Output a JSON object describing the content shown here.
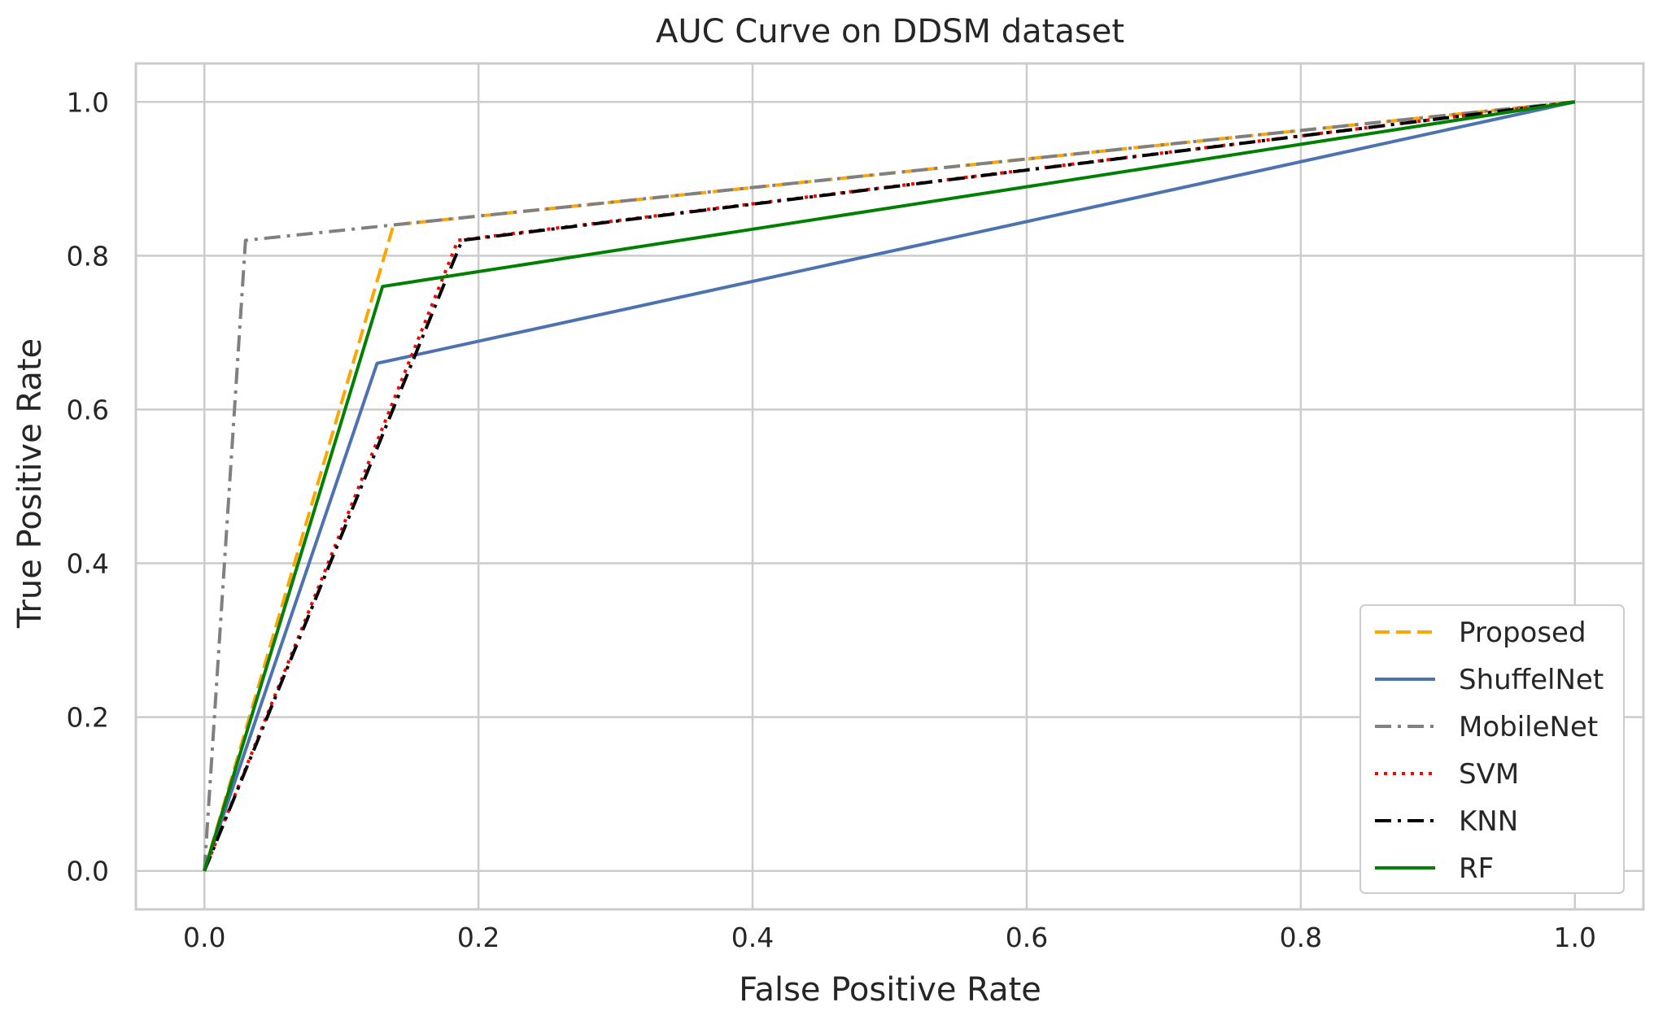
{
  "chart_data": {
    "type": "line",
    "title": "AUC Curve on DDSM dataset",
    "xlabel": "False Positive Rate",
    "ylabel": "True Positive Rate",
    "xlim": [
      -0.05,
      1.05
    ],
    "ylim": [
      -0.05,
      1.05
    ],
    "grid": true,
    "legend_position": "lower-right",
    "xticks": [
      0.0,
      0.2,
      0.4,
      0.6,
      0.8,
      1.0
    ],
    "yticks": [
      0.0,
      0.2,
      0.4,
      0.6,
      0.8,
      1.0
    ],
    "xtick_labels": [
      "0.0",
      "0.2",
      "0.4",
      "0.6",
      "0.8",
      "1.0"
    ],
    "ytick_labels": [
      "0.0",
      "0.2",
      "0.4",
      "0.6",
      "0.8",
      "1.0"
    ],
    "series": [
      {
        "name": "Proposed",
        "color": "#ffa500",
        "style": "dashed",
        "x": [
          0.0,
          0.138,
          1.0
        ],
        "y": [
          0.0,
          0.84,
          1.0
        ]
      },
      {
        "name": "ShuffelNet",
        "color": "#4c72b0",
        "style": "solid",
        "x": [
          0.0,
          0.126,
          1.0
        ],
        "y": [
          0.0,
          0.66,
          1.0
        ]
      },
      {
        "name": "MobileNet",
        "color": "#808080",
        "style": "dashdot",
        "x": [
          0.0,
          0.03,
          1.0
        ],
        "y": [
          0.0,
          0.82,
          1.0
        ]
      },
      {
        "name": "SVM",
        "color": "#ff0000",
        "style": "dotted",
        "x": [
          0.0,
          0.185,
          1.0
        ],
        "y": [
          0.0,
          0.82,
          1.0
        ]
      },
      {
        "name": "KNN",
        "color": "#000000",
        "style": "dashdot",
        "x": [
          0.0,
          0.188,
          1.0
        ],
        "y": [
          0.0,
          0.82,
          1.0
        ]
      },
      {
        "name": "RF",
        "color": "#008000",
        "style": "solid",
        "x": [
          0.0,
          0.13,
          1.0
        ],
        "y": [
          0.0,
          0.76,
          1.0
        ]
      }
    ]
  }
}
